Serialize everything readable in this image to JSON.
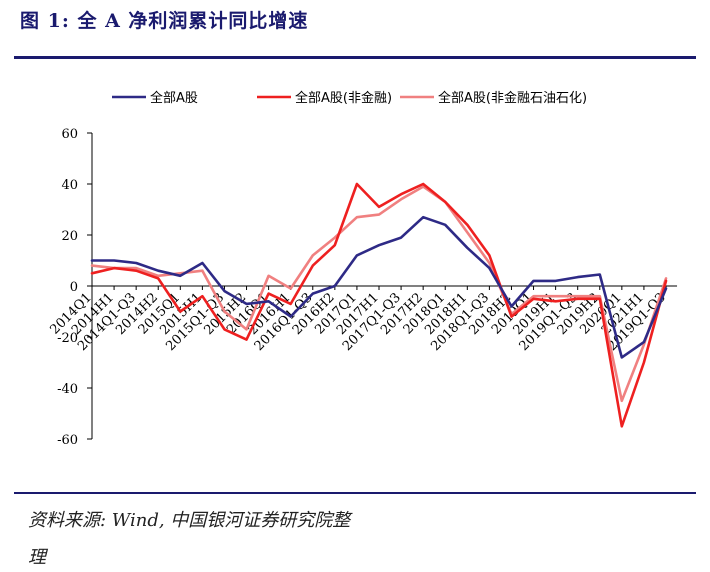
{
  "title": "图 1: 全 A 净利润累计同比增速",
  "source_line1": "资料来源: Wind, 中国银河证券研究院整",
  "source_line2": "理",
  "colors": {
    "series1": "#2e2a86",
    "series2": "#ee2020",
    "series3": "#f08080",
    "rule": "#1a1a6e"
  },
  "chart_data": {
    "type": "line",
    "title": "",
    "xlabel": "",
    "ylabel": "",
    "ylim": [
      -60,
      60
    ],
    "yticks": [
      60,
      40,
      20,
      0,
      -20,
      -40,
      -60
    ],
    "legend_position": "top",
    "grid": false,
    "categories": [
      "2014Q1",
      "2014H1",
      "2014Q1-Q3",
      "2014H2",
      "2015Q1",
      "2015H1",
      "2015Q1-Q3",
      "2015H2",
      "2016Q1",
      "2016H1",
      "2016Q1-Q3",
      "2016H2",
      "2017Q1",
      "2017H1",
      "2017Q1-Q3",
      "2017H2",
      "2018Q1",
      "2018H1",
      "2018Q1-Q3",
      "2018H2",
      "2019Q1",
      "2019H1",
      "2019Q1-Q3",
      "2019H2",
      "2020Q1",
      "2021H1",
      "2019Q1-Q3"
    ],
    "series": [
      {
        "name": "全部A股",
        "values": [
          10,
          10,
          9,
          6,
          4,
          9,
          -2,
          -7,
          -6,
          -12,
          -3,
          0,
          12,
          16,
          19,
          27,
          24,
          15,
          7,
          -8,
          2,
          2,
          3.5,
          4.5,
          -28,
          -22,
          -1
        ]
      },
      {
        "name": "全部A股(非金融)",
        "values": [
          5,
          7,
          6,
          3,
          -10,
          -4,
          -17,
          -21,
          -3,
          -7,
          8,
          16,
          40,
          31,
          36,
          40,
          33,
          24,
          12,
          -12,
          -5,
          -6,
          -5,
          -5,
          -55,
          -30,
          2
        ]
      },
      {
        "name": "全部A股(非金融石油石化)",
        "values": [
          8,
          7,
          7,
          4,
          5,
          6,
          -10,
          -17,
          4,
          -1,
          12,
          19,
          27,
          28,
          34,
          39,
          33,
          21,
          9,
          -11,
          -4,
          -4,
          -4,
          -4,
          -45,
          -23,
          3
        ]
      }
    ]
  }
}
